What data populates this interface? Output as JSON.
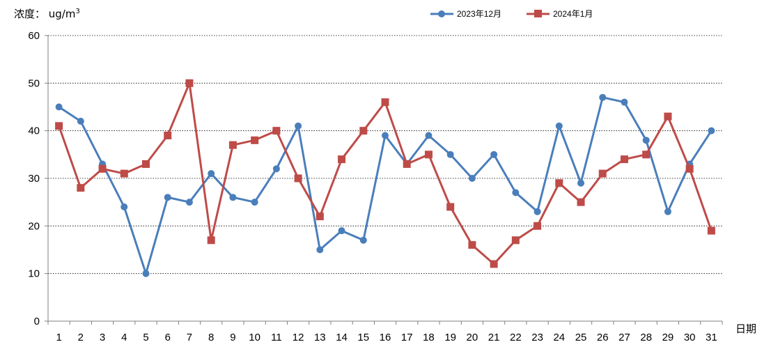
{
  "chart_data": {
    "type": "line",
    "ylabel": "浓度： ug/m",
    "ylabel_superscript": "3",
    "xlabel": "日期",
    "ylim": [
      0,
      60
    ],
    "y_ticks": [
      0,
      10,
      20,
      30,
      40,
      50,
      60
    ],
    "grid": "horizontal dotted",
    "legend_position": "top-right",
    "categories": [
      "1",
      "2",
      "3",
      "4",
      "5",
      "6",
      "7",
      "8",
      "9",
      "10",
      "11",
      "12",
      "13",
      "14",
      "15",
      "16",
      "17",
      "18",
      "19",
      "20",
      "21",
      "22",
      "23",
      "24",
      "25",
      "26",
      "27",
      "28",
      "29",
      "30",
      "31"
    ],
    "series": [
      {
        "name": "2023年12月",
        "color": "#4a7ebb",
        "marker": "circle",
        "values": [
          45,
          42,
          33,
          24,
          10,
          26,
          25,
          31,
          26,
          25,
          32,
          41,
          15,
          19,
          17,
          39,
          33,
          39,
          35,
          30,
          35,
          27,
          23,
          41,
          29,
          47,
          46,
          38,
          23,
          33,
          40
        ]
      },
      {
        "name": "2024年1月",
        "color": "#be4b48",
        "marker": "square",
        "values": [
          41,
          28,
          32,
          31,
          33,
          39,
          50,
          17,
          37,
          38,
          40,
          30,
          22,
          34,
          40,
          46,
          33,
          35,
          24,
          16,
          12,
          17,
          20,
          29,
          25,
          31,
          34,
          35,
          43,
          32,
          19
        ]
      }
    ]
  }
}
